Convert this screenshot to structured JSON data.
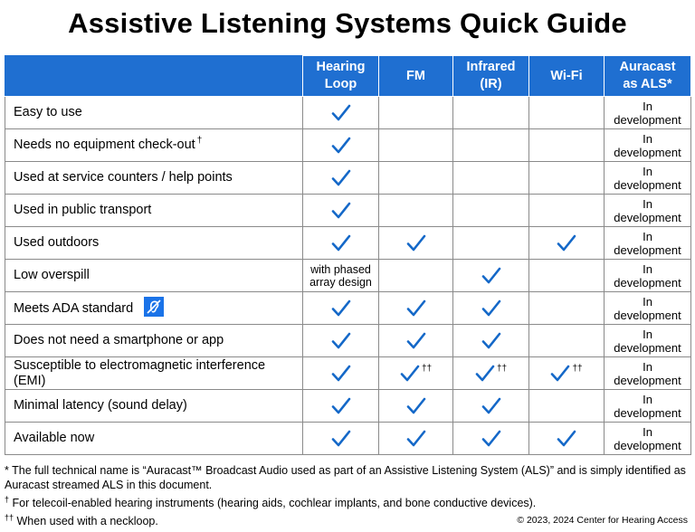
{
  "title": "Assistive Listening Systems Quick Guide",
  "colors": {
    "header_bg": "#1f6fd1",
    "check": "#1468c8"
  },
  "columns": [
    "Hearing Loop",
    "FM",
    "Infrared (IR)",
    "Wi-Fi",
    "Auracast as ALS*"
  ],
  "columns_split": [
    [
      "Hearing",
      "Loop"
    ],
    [
      "FM"
    ],
    [
      "Infrared",
      "(IR)"
    ],
    [
      "Wi-Fi"
    ],
    [
      "Auracast",
      "as ALS*"
    ]
  ],
  "in_development_lines": [
    "In",
    "development"
  ],
  "rows": [
    {
      "feature": "Easy to use",
      "cells": [
        "check",
        "",
        "",
        "",
        "dev"
      ]
    },
    {
      "feature": "Needs no equipment check-out",
      "feature_mark": "†",
      "cells": [
        "check",
        "",
        "",
        "",
        "dev"
      ]
    },
    {
      "feature": "Used at service counters / help points",
      "cells": [
        "check",
        "",
        "",
        "",
        "dev"
      ]
    },
    {
      "feature": "Used in public transport",
      "cells": [
        "check",
        "",
        "",
        "",
        "dev"
      ]
    },
    {
      "feature": "Used outdoors",
      "cells": [
        "check",
        "check",
        "",
        "check",
        "dev"
      ]
    },
    {
      "feature": "Low overspill",
      "cells": [
        "note",
        "",
        "check",
        "",
        "dev"
      ],
      "note_lines": [
        "with phased",
        "array design"
      ]
    },
    {
      "feature": "Meets ADA standard",
      "icon": "hearing-assistance-symbol-icon",
      "cells": [
        "check",
        "check",
        "check",
        "",
        "dev"
      ]
    },
    {
      "feature": "Does not need a smartphone or app",
      "cells": [
        "check",
        "check",
        "check",
        "",
        "dev"
      ]
    },
    {
      "feature": "Susceptible to electromagnetic interference",
      "feature_line2": "(EMI)",
      "cells": [
        "check",
        "check††",
        "check††",
        "check††",
        "dev"
      ]
    },
    {
      "feature": "Minimal latency (sound delay)",
      "cells": [
        "check",
        "check",
        "check",
        "",
        "dev"
      ]
    },
    {
      "feature": "Available now",
      "cells": [
        "check",
        "check",
        "check",
        "check",
        "dev"
      ]
    }
  ],
  "footnotes": {
    "asterisk": "* The full technical name is “Auracast™ Broadcast Audio used as part of an Assistive Listening System (ALS)” and is simply identified as Auracast streamed ALS in this document.",
    "dagger_mark": "†",
    "dagger": " For telecoil-enabled hearing instruments (hearing aids, cochlear implants, and bone conductive devices).",
    "double_dagger_mark": "††",
    "double_dagger": " When used with a neckloop."
  },
  "copyright": "© 2023, 2024 Center for Hearing Access"
}
